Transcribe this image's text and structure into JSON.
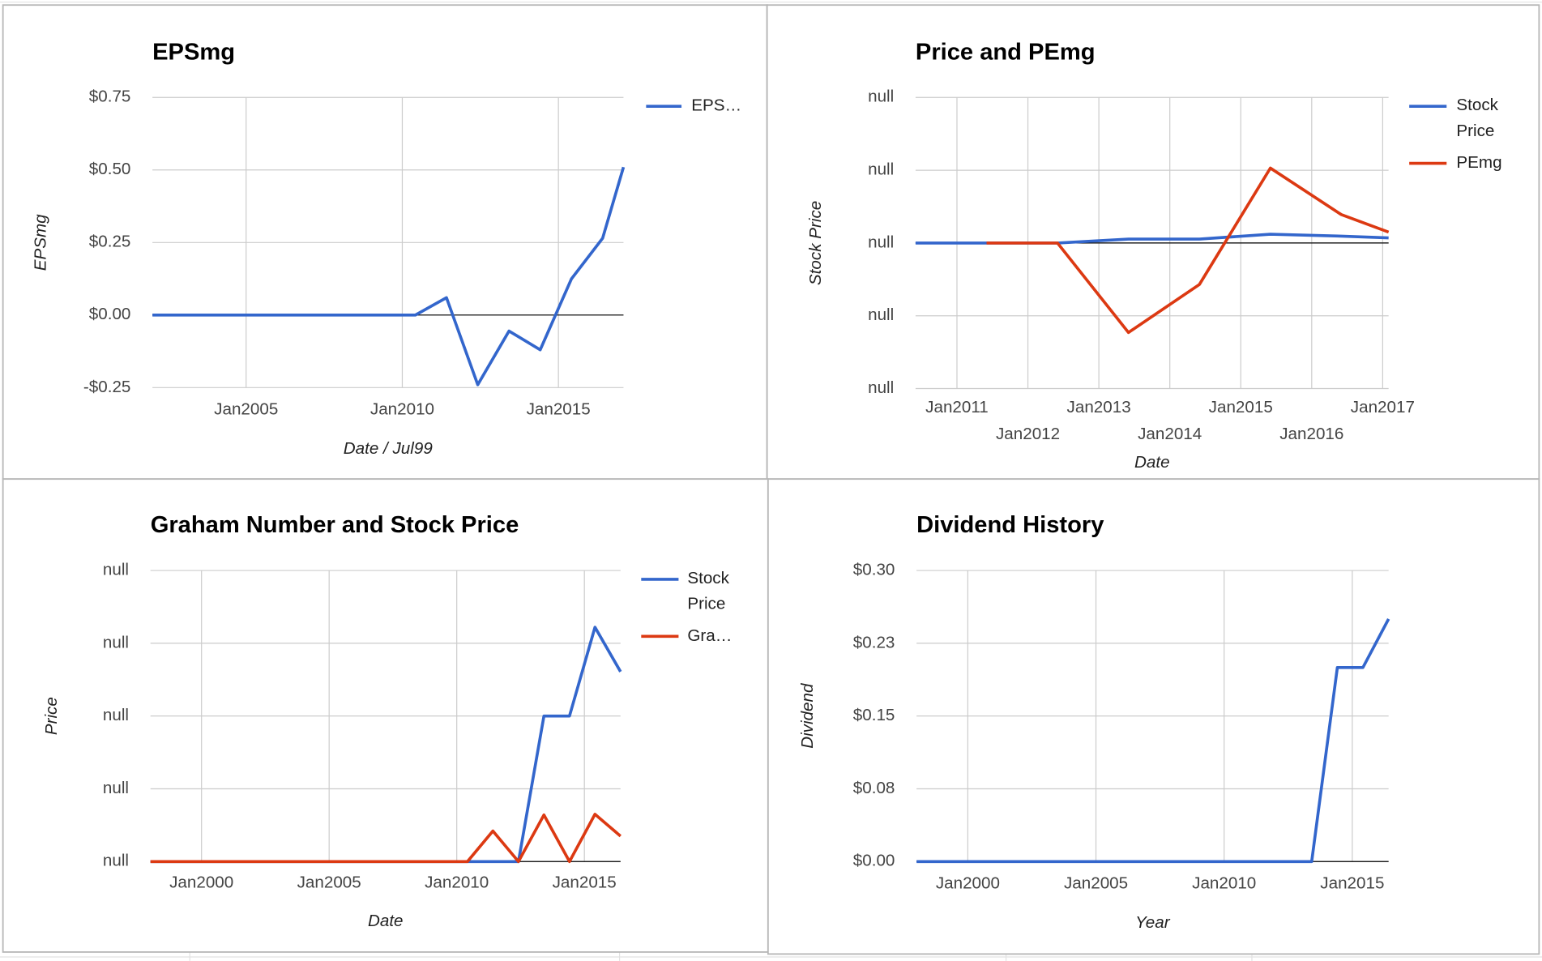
{
  "chart_data": [
    {
      "type": "line",
      "title": "EPSmg",
      "y_label": "EPSmg",
      "x_label": "Date / Jul99",
      "x": [
        "2002-01",
        "2010-06",
        "2011-06",
        "2012-06",
        "2013-06",
        "2014-06",
        "2015-06",
        "2016-06",
        "2017-02"
      ],
      "series": [
        {
          "name": "EPS…",
          "color": "#3366cc",
          "values": [
            0,
            0,
            0.06,
            -0.24,
            -0.055,
            -0.12,
            0.125,
            0.265,
            0.51
          ]
        }
      ],
      "xlim": [
        "2002-01",
        "2017-02"
      ],
      "xticks": [
        {
          "value": "2005-01",
          "label": "Jan2005"
        },
        {
          "value": "2010-01",
          "label": "Jan2010"
        },
        {
          "value": "2015-01",
          "label": "Jan2015"
        }
      ],
      "ylim": [
        -0.25,
        0.75
      ],
      "yticks": [
        {
          "value": -0.25,
          "label": "-$0.25"
        },
        {
          "value": 0,
          "label": "$0.00"
        },
        {
          "value": 0.25,
          "label": "$0.25"
        },
        {
          "value": 0.5,
          "label": "$0.50"
        },
        {
          "value": 0.75,
          "label": "$0.75"
        }
      ],
      "grid": true,
      "legend": "right"
    },
    {
      "type": "line",
      "title": "Price and PEmg",
      "y_label": "Stock Price",
      "x_label": "Date",
      "x": [
        "2010-06",
        "2011-06",
        "2012-06",
        "2013-06",
        "2014-06",
        "2015-06",
        "2016-06",
        "2017-02"
      ],
      "series": [
        {
          "name": "Stock Price",
          "color": "#3366cc",
          "values": [
            0,
            0,
            0,
            0.054,
            0.054,
            0.12,
            0.095,
            0.07
          ]
        },
        {
          "name": "PEmg",
          "color": "#dc3912",
          "values": [
            null,
            0,
            0,
            -1.23,
            -0.57,
            1.03,
            0.39,
            0.15
          ]
        }
      ],
      "xlim": [
        "2010-06",
        "2017-02"
      ],
      "xticks": [
        {
          "value": "2011-01",
          "label": "Jan2011"
        },
        {
          "value": "2012-01",
          "label": "Jan2012"
        },
        {
          "value": "2013-01",
          "label": "Jan2013"
        },
        {
          "value": "2014-01",
          "label": "Jan2014"
        },
        {
          "value": "2015-01",
          "label": "Jan2015"
        },
        {
          "value": "2016-01",
          "label": "Jan2016"
        },
        {
          "value": "2017-01",
          "label": "Jan2017"
        }
      ],
      "ylim": [
        -2,
        2
      ],
      "yticks": [
        {
          "value": -2,
          "label": "null"
        },
        {
          "value": -1,
          "label": "null"
        },
        {
          "value": 0,
          "label": "null"
        },
        {
          "value": 1,
          "label": "null"
        },
        {
          "value": 2,
          "label": "null"
        }
      ],
      "grid": true,
      "legend": "right"
    },
    {
      "type": "line",
      "title": "Graham Number and Stock Price",
      "y_label": "Price",
      "x_label": "Date",
      "x": [
        "1998-01",
        "2010-06",
        "2011-06",
        "2012-06",
        "2013-06",
        "2014-06",
        "2015-06",
        "2016-06"
      ],
      "series": [
        {
          "name": "Stock Price",
          "color": "#3366cc",
          "values": [
            0,
            0,
            0,
            0,
            2,
            2,
            3.22,
            2.61
          ]
        },
        {
          "name": "Gra…",
          "color": "#dc3912",
          "values": [
            0,
            0,
            0.42,
            0,
            0.64,
            0,
            0.65,
            0.35
          ]
        }
      ],
      "xlim": [
        "1998-01",
        "2016-06"
      ],
      "xticks": [
        {
          "value": "2000-01",
          "label": "Jan2000"
        },
        {
          "value": "2005-01",
          "label": "Jan2005"
        },
        {
          "value": "2010-01",
          "label": "Jan2010"
        },
        {
          "value": "2015-01",
          "label": "Jan2015"
        }
      ],
      "ylim": [
        0,
        4
      ],
      "yticks": [
        {
          "value": 0,
          "label": "null"
        },
        {
          "value": 1,
          "label": "null"
        },
        {
          "value": 2,
          "label": "null"
        },
        {
          "value": 3,
          "label": "null"
        },
        {
          "value": 4,
          "label": "null"
        }
      ],
      "grid": true,
      "legend": "right"
    },
    {
      "type": "line",
      "title": "Dividend History",
      "y_label": "Dividend",
      "x_label": "Year",
      "x": [
        "1998-01",
        "2013-06",
        "2014-06",
        "2015-06",
        "2016-06"
      ],
      "series": [
        {
          "name": "Dividend",
          "color": "#3366cc",
          "values": [
            0,
            0,
            0.2,
            0.2,
            0.25
          ]
        }
      ],
      "xlim": [
        "1998-01",
        "2016-06"
      ],
      "xticks": [
        {
          "value": "2000-01",
          "label": "Jan2000"
        },
        {
          "value": "2005-01",
          "label": "Jan2005"
        },
        {
          "value": "2010-01",
          "label": "Jan2010"
        },
        {
          "value": "2015-01",
          "label": "Jan2015"
        }
      ],
      "ylim": [
        0,
        0.3
      ],
      "yticks": [
        {
          "value": 0,
          "label": "$0.00"
        },
        {
          "value": 0.075,
          "label": "$0.08"
        },
        {
          "value": 0.15,
          "label": "$0.15"
        },
        {
          "value": 0.225,
          "label": "$0.23"
        },
        {
          "value": 0.3,
          "label": "$0.30"
        }
      ],
      "grid": true,
      "legend": "none"
    }
  ]
}
